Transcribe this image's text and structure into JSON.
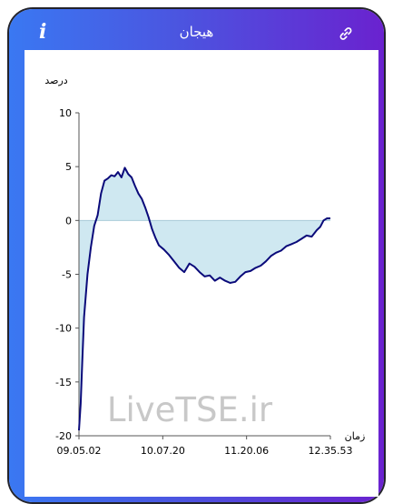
{
  "header": {
    "title": "هیجان",
    "info_icon": "info-icon",
    "link_icon": "link-icon"
  },
  "colors": {
    "frame_start": "#3a78f2",
    "frame_end": "#6a22cf",
    "line": "#0a0a7a",
    "fill": "#cfe8f1"
  },
  "chart_data": {
    "type": "area",
    "ylabel": "درصد",
    "xlabel": "زمان",
    "ylim": [
      -20,
      10
    ],
    "yticks": [
      10,
      5,
      0,
      -5,
      -10,
      -15,
      -20
    ],
    "xticks": [
      "09.05.02",
      "10.07.20",
      "11.20.06",
      "12.35.53"
    ],
    "watermark": "LiveTSE.ir",
    "series": [
      {
        "values": [
          [
            0,
            -19.5
          ],
          [
            1,
            -17
          ],
          [
            2,
            -13
          ],
          [
            3,
            -9
          ],
          [
            5,
            -5
          ],
          [
            7,
            -2.5
          ],
          [
            9,
            -0.5
          ],
          [
            11,
            0.5
          ],
          [
            13,
            2.5
          ],
          [
            15,
            3.7
          ],
          [
            17,
            3.9
          ],
          [
            19,
            4.2
          ],
          [
            21,
            4.1
          ],
          [
            23,
            4.5
          ],
          [
            25,
            4.0
          ],
          [
            27,
            4.9
          ],
          [
            29,
            4.3
          ],
          [
            31,
            4.0
          ],
          [
            33,
            3.2
          ],
          [
            35,
            2.5
          ],
          [
            37,
            2.0
          ],
          [
            39,
            1.2
          ],
          [
            41,
            0.3
          ],
          [
            43,
            -0.8
          ],
          [
            45,
            -1.6
          ],
          [
            47,
            -2.3
          ],
          [
            50,
            -2.7
          ],
          [
            53,
            -3.2
          ],
          [
            56,
            -3.8
          ],
          [
            59,
            -4.4
          ],
          [
            62,
            -4.8
          ],
          [
            65,
            -4.0
          ],
          [
            68,
            -4.3
          ],
          [
            71,
            -4.8
          ],
          [
            74,
            -5.2
          ],
          [
            77,
            -5.1
          ],
          [
            80,
            -5.6
          ],
          [
            83,
            -5.3
          ],
          [
            86,
            -5.6
          ],
          [
            89,
            -5.8
          ],
          [
            92,
            -5.7
          ],
          [
            95,
            -5.2
          ],
          [
            98,
            -4.8
          ],
          [
            101,
            -4.7
          ],
          [
            104,
            -4.4
          ],
          [
            107,
            -4.2
          ],
          [
            110,
            -3.8
          ],
          [
            113,
            -3.3
          ],
          [
            116,
            -3.0
          ],
          [
            119,
            -2.8
          ],
          [
            122,
            -2.4
          ],
          [
            125,
            -2.2
          ],
          [
            128,
            -2.0
          ],
          [
            131,
            -1.7
          ],
          [
            134,
            -1.4
          ],
          [
            137,
            -1.5
          ],
          [
            140,
            -0.9
          ],
          [
            142,
            -0.6
          ],
          [
            144,
            0.0
          ],
          [
            146,
            0.2
          ],
          [
            148,
            0.2
          ]
        ]
      }
    ]
  }
}
